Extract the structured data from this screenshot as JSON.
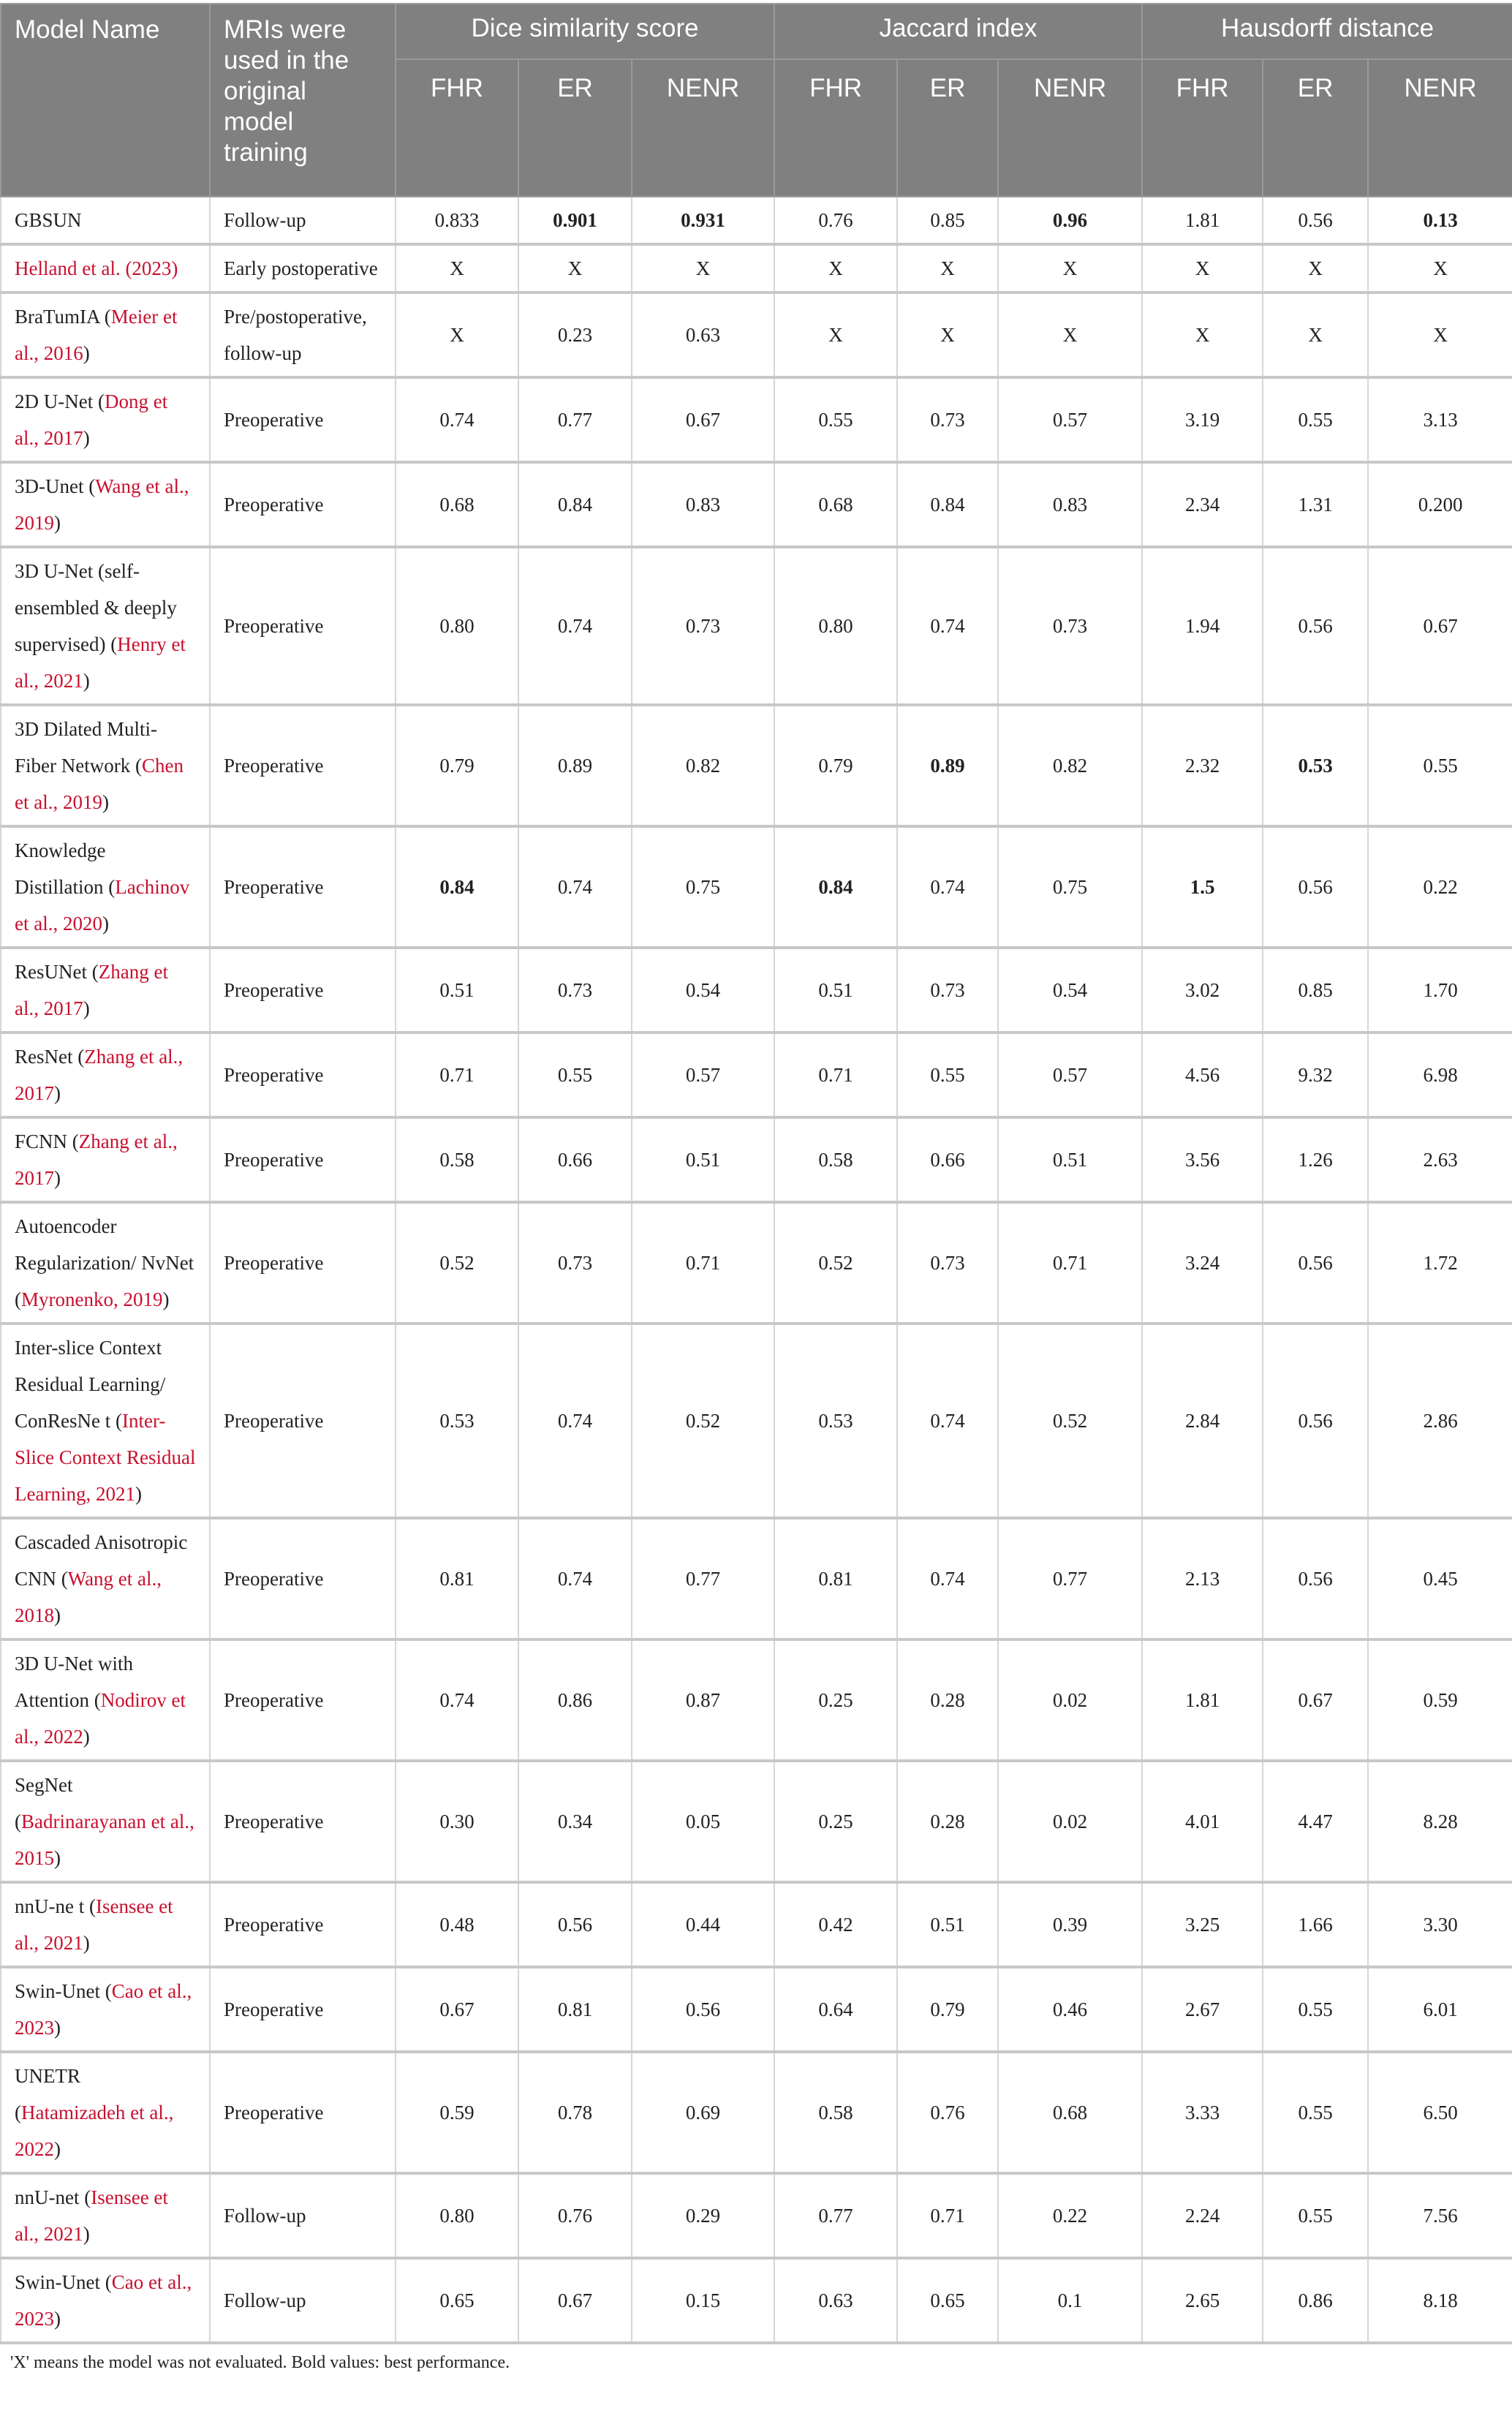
{
  "header": {
    "model_name": "Model Name",
    "mri": "MRIs were used in the original model training",
    "groups": [
      "Dice similarity score",
      "Jaccard index",
      "Hausdorff distance"
    ],
    "subcolumns": [
      "FHR",
      "ER",
      "NENR",
      "FHR",
      "ER",
      "NENR",
      "FHR",
      "ER",
      "NENR"
    ]
  },
  "rows": [
    {
      "pre": "GBSUN",
      "ref": "",
      "post": "",
      "mri": "Follow-up",
      "values": [
        "0.833",
        "0.901",
        "0.931",
        "0.76",
        "0.85",
        "0.96",
        "1.81",
        "0.56",
        "0.13"
      ],
      "bold": [
        1,
        2,
        5,
        8
      ]
    },
    {
      "pre": "",
      "ref": "Helland et al. (2023)",
      "post": "",
      "mri": "Early postoperative",
      "values": [
        "X",
        "X",
        "X",
        "X",
        "X",
        "X",
        "X",
        "X",
        "X"
      ],
      "bold": []
    },
    {
      "pre": "BraTumIA (",
      "ref": "Meier et al., 2016",
      "post": ")",
      "mri": "Pre/postoperative, follow-up",
      "values": [
        "X",
        "0.23",
        "0.63",
        "X",
        "X",
        "X",
        "X",
        "X",
        "X"
      ],
      "bold": []
    },
    {
      "pre": "2D U-Net (",
      "ref": "Dong et al., 2017",
      "post": ")",
      "mri": "Preoperative",
      "values": [
        "0.74",
        "0.77",
        "0.67",
        "0.55",
        "0.73",
        "0.57",
        "3.19",
        "0.55",
        "3.13"
      ],
      "bold": []
    },
    {
      "pre": "3D-Unet (",
      "ref": "Wang et al., 2019",
      "post": ")",
      "mri": "Preoperative",
      "values": [
        "0.68",
        "0.84",
        "0.83",
        "0.68",
        "0.84",
        "0.83",
        "2.34",
        "1.31",
        "0.200"
      ],
      "bold": []
    },
    {
      "pre": "3D U-Net (self-ensembled & deeply supervised) (",
      "ref": "Henry et al., 2021",
      "post": ")",
      "mri": "Preoperative",
      "values": [
        "0.80",
        "0.74",
        "0.73",
        "0.80",
        "0.74",
        "0.73",
        "1.94",
        "0.56",
        "0.67"
      ],
      "bold": []
    },
    {
      "pre": "3D Dilated Multi-Fiber Network (",
      "ref": "Chen et al., 2019",
      "post": ")",
      "mri": "Preoperative",
      "values": [
        "0.79",
        "0.89",
        "0.82",
        "0.79",
        "0.89",
        "0.82",
        "2.32",
        "0.53",
        "0.55"
      ],
      "bold": [
        4,
        7
      ]
    },
    {
      "pre": "Knowledge Distillation (",
      "ref": "Lachinov et al., 2020",
      "post": ")",
      "mri": "Preoperative",
      "values": [
        "0.84",
        "0.74",
        "0.75",
        "0.84",
        "0.74",
        "0.75",
        "1.5",
        "0.56",
        "0.22"
      ],
      "bold": [
        0,
        3,
        6
      ]
    },
    {
      "pre": "ResUNet (",
      "ref": "Zhang et al., 2017",
      "post": ")",
      "mri": "Preoperative",
      "values": [
        "0.51",
        "0.73",
        "0.54",
        "0.51",
        "0.73",
        "0.54",
        "3.02",
        "0.85",
        "1.70"
      ],
      "bold": []
    },
    {
      "pre": "ResNet (",
      "ref": "Zhang et al., 2017",
      "post": ")",
      "mri": "Preoperative",
      "values": [
        "0.71",
        "0.55",
        "0.57",
        "0.71",
        "0.55",
        "0.57",
        "4.56",
        "9.32",
        "6.98"
      ],
      "bold": []
    },
    {
      "pre": "FCNN (",
      "ref": "Zhang et al., 2017",
      "post": ")",
      "mri": "Preoperative",
      "values": [
        "0.58",
        "0.66",
        "0.51",
        "0.58",
        "0.66",
        "0.51",
        "3.56",
        "1.26",
        "2.63"
      ],
      "bold": []
    },
    {
      "pre": "Autoencoder Regularization/ NvNet (",
      "ref": "Myronenko, 2019",
      "post": ")",
      "mri": "Preoperative",
      "values": [
        "0.52",
        "0.73",
        "0.71",
        "0.52",
        "0.73",
        "0.71",
        "3.24",
        "0.56",
        "1.72"
      ],
      "bold": []
    },
    {
      "pre": "Inter-slice Context Residual Learning/ ConResNe t (",
      "ref": "Inter-Slice Context Residual Learning, 2021",
      "post": ")",
      "mri": "Preoperative",
      "values": [
        "0.53",
        "0.74",
        "0.52",
        "0.53",
        "0.74",
        "0.52",
        "2.84",
        "0.56",
        "2.86"
      ],
      "bold": []
    },
    {
      "pre": "Cascaded Anisotropic CNN (",
      "ref": "Wang et al., 2018",
      "post": ")",
      "mri": "Preoperative",
      "values": [
        "0.81",
        "0.74",
        "0.77",
        "0.81",
        "0.74",
        "0.77",
        "2.13",
        "0.56",
        "0.45"
      ],
      "bold": []
    },
    {
      "pre": "3D U-Net with Attention (",
      "ref": "Nodirov et al., 2022",
      "post": ")",
      "mri": "Preoperative",
      "values": [
        "0.74",
        "0.86",
        "0.87",
        "0.25",
        "0.28",
        "0.02",
        "1.81",
        "0.67",
        "0.59"
      ],
      "bold": []
    },
    {
      "pre": "SegNet (",
      "ref": "Badrinarayanan et al., 2015",
      "post": ")",
      "mri": "Preoperative",
      "values": [
        "0.30",
        "0.34",
        "0.05",
        "0.25",
        "0.28",
        "0.02",
        "4.01",
        "4.47",
        "8.28"
      ],
      "bold": []
    },
    {
      "pre": "nnU-ne t (",
      "ref": "Isensee et al., 2021",
      "post": ")",
      "mri": "Preoperative",
      "values": [
        "0.48",
        "0.56",
        "0.44",
        "0.42",
        "0.51",
        "0.39",
        "3.25",
        "1.66",
        "3.30"
      ],
      "bold": []
    },
    {
      "pre": "Swin-Unet (",
      "ref": "Cao et al., 2023",
      "post": ")",
      "mri": "Preoperative",
      "values": [
        "0.67",
        "0.81",
        "0.56",
        "0.64",
        "0.79",
        "0.46",
        "2.67",
        "0.55",
        "6.01"
      ],
      "bold": []
    },
    {
      "pre": "UNETR (",
      "ref": "Hatamizadeh et al., 2022",
      "post": ")",
      "mri": "Preoperative",
      "values": [
        "0.59",
        "0.78",
        "0.69",
        "0.58",
        "0.76",
        "0.68",
        "3.33",
        "0.55",
        "6.50"
      ],
      "bold": []
    },
    {
      "pre": "nnU-net (",
      "ref": "Isensee et al., 2021",
      "post": ")",
      "mri": "Follow-up",
      "values": [
        "0.80",
        "0.76",
        "0.29",
        "0.77",
        "0.71",
        "0.22",
        "2.24",
        "0.55",
        "7.56"
      ],
      "bold": []
    },
    {
      "pre": "Swin-Unet (",
      "ref": "Cao et al., 2023",
      "post": ")",
      "mri": "Follow-up",
      "values": [
        "0.65",
        "0.67",
        "0.15",
        "0.63",
        "0.65",
        "0.1",
        "2.65",
        "0.86",
        "8.18"
      ],
      "bold": []
    }
  ],
  "footnote": "'X' means the model was not evaluated. Bold values: best performance.",
  "colors": {
    "header_bg": "#808080",
    "reference_link": "#c8102e"
  }
}
